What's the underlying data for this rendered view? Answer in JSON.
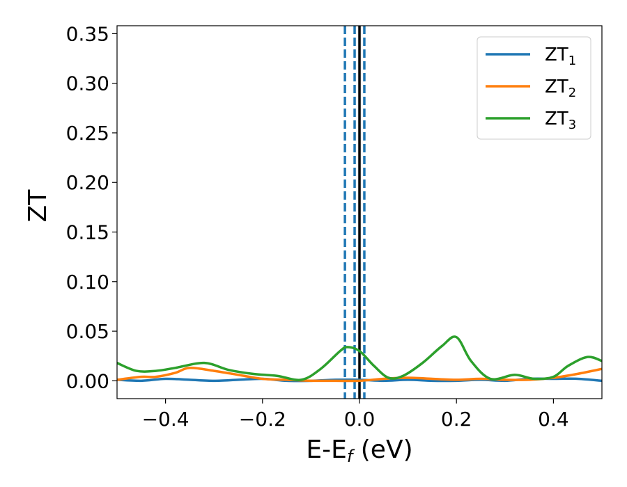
{
  "chart_data": {
    "type": "line",
    "xlabel": {
      "main": "E-E",
      "sub": "f",
      "suffix": " (eV)"
    },
    "ylabel": "ZT",
    "xlim": [
      -0.5,
      0.5
    ],
    "ylim": [
      -0.018,
      0.358
    ],
    "xticks": [
      -0.4,
      -0.2,
      0.0,
      0.2,
      0.4
    ],
    "xtick_labels": [
      "−0.4",
      "−0.2",
      "0.0",
      "0.2",
      "0.4"
    ],
    "yticks": [
      0.0,
      0.05,
      0.1,
      0.15,
      0.2,
      0.25,
      0.3,
      0.35
    ],
    "ytick_labels": [
      "0.00",
      "0.05",
      "0.10",
      "0.15",
      "0.20",
      "0.25",
      "0.30",
      "0.35"
    ],
    "grid": false,
    "legend_position": "top-right",
    "vlines": [
      {
        "x": 0.0,
        "style": "solid",
        "color": "#000000"
      },
      {
        "x": -0.03,
        "style": "dashed",
        "color": "#1f77b4"
      },
      {
        "x": -0.01,
        "style": "dashed",
        "color": "#1f77b4"
      },
      {
        "x": 0.01,
        "style": "dashed",
        "color": "#1f77b4"
      }
    ],
    "series": [
      {
        "name": "ZT",
        "name_sub": "1",
        "color": "#1f77b4",
        "x": [
          -0.5,
          -0.45,
          -0.4,
          -0.35,
          -0.3,
          -0.25,
          -0.2,
          -0.15,
          -0.1,
          -0.05,
          0.0,
          0.05,
          0.1,
          0.15,
          0.2,
          0.25,
          0.3,
          0.35,
          0.4,
          0.45,
          0.5
        ],
        "y": [
          0.001,
          0.0,
          0.002,
          0.001,
          0.0,
          0.001,
          0.002,
          0.0,
          0.0,
          0.001,
          0.001,
          0.0,
          0.001,
          0.0,
          0.0,
          0.001,
          0.0,
          0.002,
          0.002,
          0.002,
          0.0
        ]
      },
      {
        "name": "ZT",
        "name_sub": "2",
        "color": "#ff7f0e",
        "x": [
          -0.5,
          -0.45,
          -0.42,
          -0.38,
          -0.35,
          -0.3,
          -0.25,
          -0.2,
          -0.15,
          -0.1,
          -0.05,
          0.0,
          0.05,
          0.1,
          0.15,
          0.2,
          0.25,
          0.3,
          0.35,
          0.4,
          0.45,
          0.5
        ],
        "y": [
          0.001,
          0.004,
          0.004,
          0.008,
          0.013,
          0.01,
          0.006,
          0.002,
          0.001,
          0.0,
          0.0,
          0.0,
          0.002,
          0.003,
          0.002,
          0.001,
          0.002,
          0.001,
          0.001,
          0.003,
          0.007,
          0.012
        ]
      },
      {
        "name": "ZT",
        "name_sub": "3",
        "color": "#2ca02c",
        "x": [
          -0.5,
          -0.46,
          -0.42,
          -0.38,
          -0.32,
          -0.27,
          -0.22,
          -0.17,
          -0.12,
          -0.08,
          -0.04,
          -0.025,
          0.0,
          0.03,
          0.06,
          0.09,
          0.13,
          0.17,
          0.2,
          0.23,
          0.27,
          0.32,
          0.36,
          0.4,
          0.43,
          0.47,
          0.5
        ],
        "y": [
          0.018,
          0.01,
          0.01,
          0.013,
          0.018,
          0.011,
          0.007,
          0.005,
          0.001,
          0.012,
          0.03,
          0.034,
          0.03,
          0.015,
          0.003,
          0.005,
          0.018,
          0.035,
          0.044,
          0.02,
          0.002,
          0.006,
          0.002,
          0.004,
          0.015,
          0.024,
          0.02
        ]
      }
    ]
  }
}
